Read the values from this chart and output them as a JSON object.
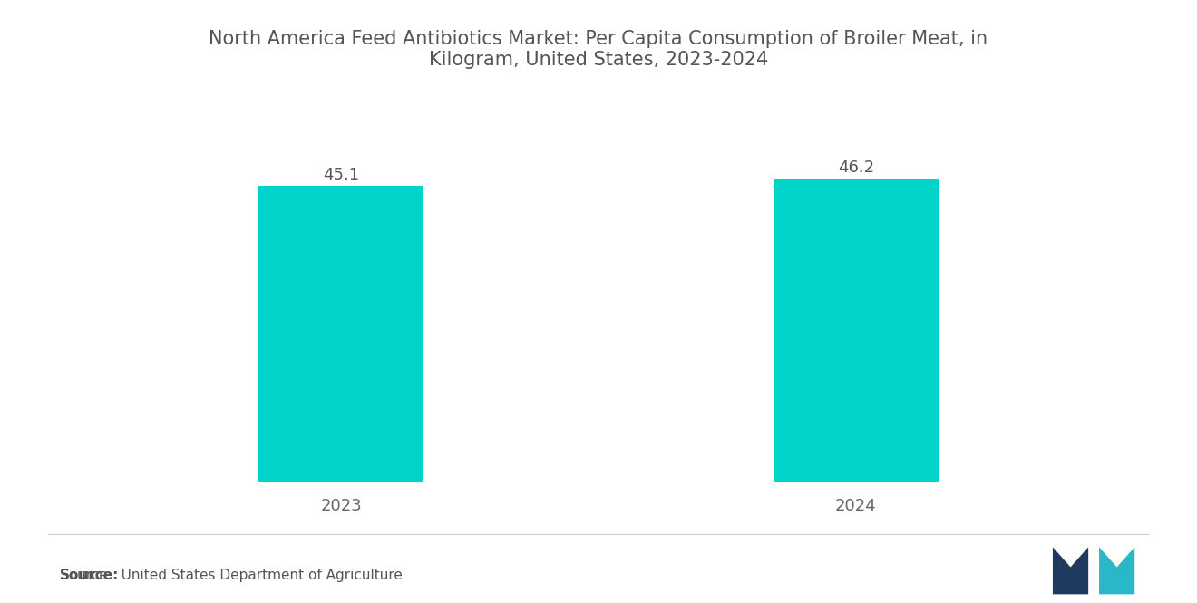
{
  "title": "North America Feed Antibiotics Market: Per Capita Consumption of Broiler Meat, in\nKilogram, United States, 2023-2024",
  "categories": [
    "2023",
    "2024"
  ],
  "values": [
    45.1,
    46.2
  ],
  "bar_color": "#00D4C8",
  "bar_width": 0.32,
  "background_color": "#ffffff",
  "title_color": "#555555",
  "title_fontsize": 15,
  "label_fontsize": 13,
  "value_fontsize": 13,
  "value_color": "#555555",
  "xlabel_color": "#666666",
  "ylim": [
    0,
    55
  ],
  "source_label": "Source:",
  "source_text": "  United States Department of Agriculture",
  "source_fontsize": 11,
  "logo_dark": "#1e3a5f",
  "logo_teal": "#2ab8c8"
}
